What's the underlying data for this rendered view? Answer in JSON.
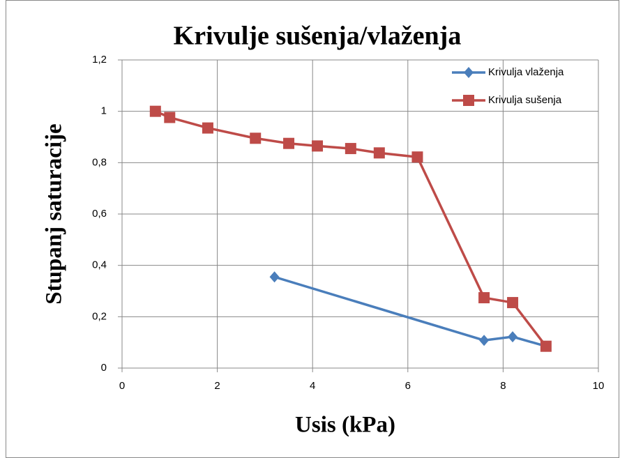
{
  "chart_data": {
    "type": "line",
    "title": "Krivulje sušenja/vlaženja",
    "x_label": "Usis (kPa)",
    "y_label": "Stupanj saturacije",
    "xlim": [
      0,
      10
    ],
    "xticks": [
      0,
      2,
      4,
      6,
      8,
      10
    ],
    "ylim": [
      0,
      1.2
    ],
    "yticks": [
      0,
      {
        "value": 0.2,
        "label": "0,2"
      },
      {
        "value": 0.4,
        "label": "0,4"
      },
      {
        "value": 0.6,
        "label": "0,6"
      },
      {
        "value": 0.8,
        "label": "0,8"
      },
      1,
      {
        "value": 1.2,
        "label": "1,2"
      }
    ],
    "grid": true,
    "legend": "top-right",
    "series": [
      {
        "name": "Krivulja vlaženja",
        "color": "#4a7ebb",
        "marker": "diamond",
        "x": [
          3.2,
          7.6,
          8.2,
          8.9
        ],
        "values": [
          0.355,
          0.108,
          0.122,
          0.085
        ]
      },
      {
        "name": "Krivulja sušenja",
        "color": "#be4b48",
        "marker": "square",
        "x": [
          0.7,
          1.0,
          1.8,
          2.8,
          3.5,
          4.1,
          4.8,
          5.4,
          6.2,
          7.6,
          8.2,
          8.9
        ],
        "values": [
          1.0,
          0.976,
          0.935,
          0.895,
          0.875,
          0.865,
          0.855,
          0.838,
          0.822,
          0.274,
          0.255,
          0.085
        ]
      }
    ]
  }
}
